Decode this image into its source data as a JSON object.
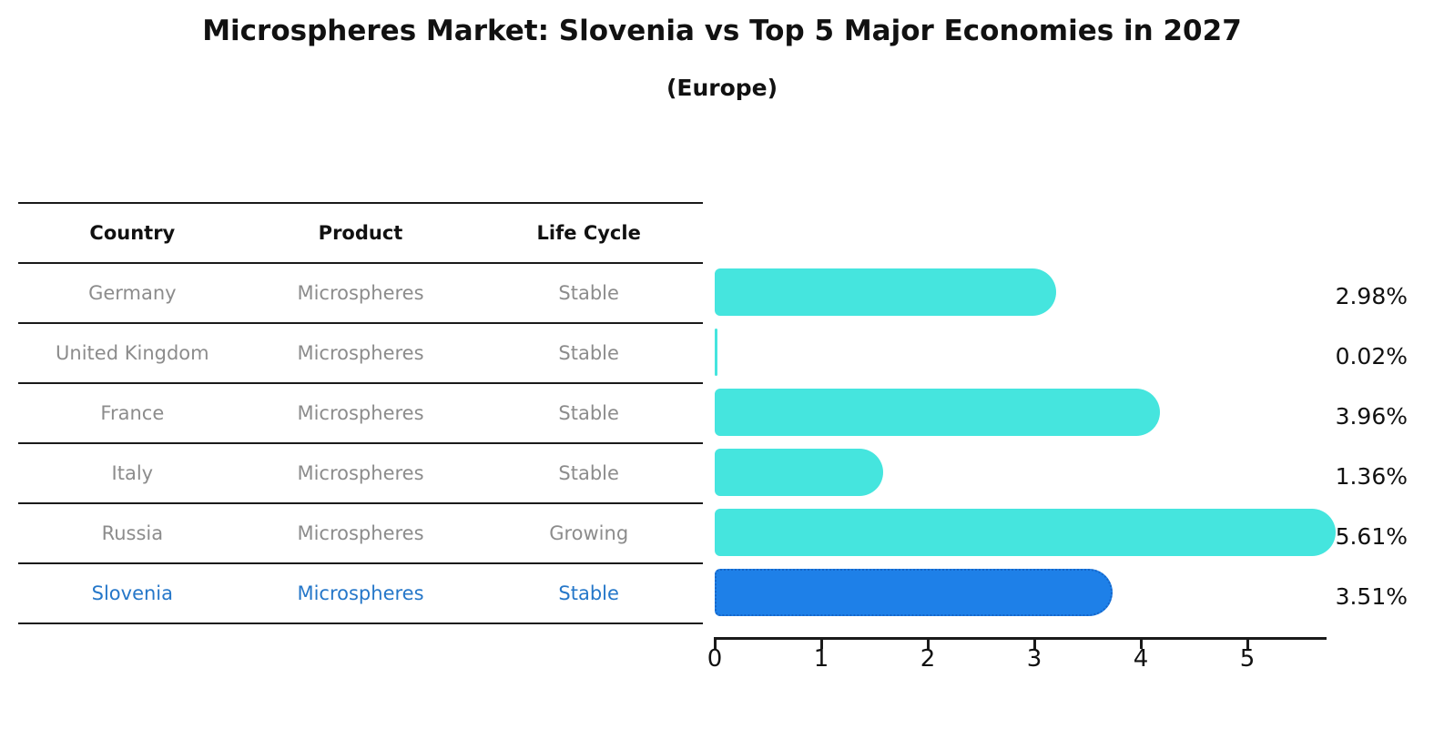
{
  "title": "Microspheres Market: Slovenia vs Top 5 Major Economies in 2027",
  "subtitle": "(Europe)",
  "table": {
    "headers": [
      "Country",
      "Product",
      "Life Cycle"
    ],
    "rows": [
      {
        "country": "Germany",
        "product": "Microspheres",
        "life_cycle": "Stable",
        "highlight": false
      },
      {
        "country": "United Kingdom",
        "product": "Microspheres",
        "life_cycle": "Stable",
        "highlight": false
      },
      {
        "country": "France",
        "product": "Microspheres",
        "life_cycle": "Stable",
        "highlight": false
      },
      {
        "country": "Italy",
        "product": "Microspheres",
        "life_cycle": "Stable",
        "highlight": false
      },
      {
        "country": "Russia",
        "product": "Microspheres",
        "life_cycle": "Growing",
        "highlight": false
      },
      {
        "country": "Slovenia",
        "product": "Microspheres",
        "life_cycle": "Stable",
        "highlight": true
      }
    ]
  },
  "chart_data": {
    "type": "bar",
    "orientation": "horizontal",
    "categories": [
      "Germany",
      "United Kingdom",
      "France",
      "Italy",
      "Russia",
      "Slovenia"
    ],
    "values": [
      2.98,
      0.02,
      3.96,
      1.36,
      5.61,
      3.51
    ],
    "value_labels": [
      "2.98%",
      "0.02%",
      "3.96%",
      "1.36%",
      "5.61%",
      "3.51%"
    ],
    "x_ticks": [
      "0",
      "1",
      "2",
      "3",
      "4",
      "5"
    ],
    "xlim": [
      0,
      5.75
    ],
    "grid": false,
    "legend": "none",
    "bar_color": "#45e5de",
    "highlight_index": 5,
    "highlight_bar_color": "#1e80e8",
    "highlight_border_color": "#1565c8",
    "highlight_text_color": "#2577c9",
    "row_text_color": "#8c8c8c",
    "axis_color": "#1a1a1a"
  }
}
